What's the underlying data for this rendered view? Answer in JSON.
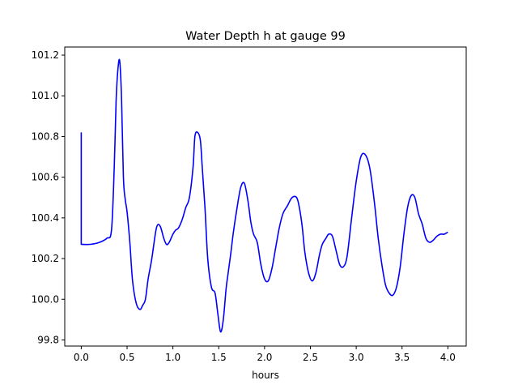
{
  "chart_data": {
    "type": "line",
    "title": "Water Depth h at gauge 99",
    "xlabel": "hours",
    "ylabel": "",
    "xlim": [
      -0.18,
      4.2
    ],
    "ylim": [
      99.77,
      101.24
    ],
    "xticks": [
      0.0,
      0.5,
      1.0,
      1.5,
      2.0,
      2.5,
      3.0,
      3.5,
      4.0
    ],
    "xtick_labels": [
      "0.0",
      "0.5",
      "1.0",
      "1.5",
      "2.0",
      "2.5",
      "3.0",
      "3.5",
      "4.0"
    ],
    "yticks": [
      99.8,
      100.0,
      100.2,
      100.4,
      100.6,
      100.8,
      101.0,
      101.2
    ],
    "ytick_labels": [
      "99.8",
      "100.0",
      "100.2",
      "100.4",
      "100.6",
      "100.8",
      "101.0",
      "101.2"
    ],
    "grid": false,
    "series": [
      {
        "color": "#0000ff",
        "x": [
          0.0,
          0.0,
          0.1,
          0.2,
          0.28,
          0.33,
          0.36,
          0.38,
          0.4,
          0.42,
          0.44,
          0.46,
          0.48,
          0.5,
          0.53,
          0.56,
          0.6,
          0.64,
          0.67,
          0.7,
          0.73,
          0.77,
          0.82,
          0.86,
          0.9,
          0.93,
          0.96,
          1.0,
          1.03,
          1.06,
          1.1,
          1.14,
          1.18,
          1.22,
          1.24,
          1.27,
          1.3,
          1.32,
          1.35,
          1.38,
          1.42,
          1.46,
          1.49,
          1.52,
          1.55,
          1.58,
          1.6,
          1.63,
          1.66,
          1.7,
          1.74,
          1.78,
          1.82,
          1.85,
          1.88,
          1.92,
          1.96,
          2.0,
          2.04,
          2.08,
          2.12,
          2.16,
          2.2,
          2.25,
          2.3,
          2.35,
          2.38,
          2.41,
          2.44,
          2.48,
          2.52,
          2.56,
          2.6,
          2.63,
          2.67,
          2.7,
          2.74,
          2.78,
          2.82,
          2.86,
          2.9,
          2.95,
          3.0,
          3.05,
          3.1,
          3.15,
          3.2,
          3.24,
          3.28,
          3.32,
          3.36,
          3.4,
          3.44,
          3.48,
          3.52,
          3.56,
          3.6,
          3.64,
          3.68,
          3.72,
          3.76,
          3.8,
          3.84,
          3.88,
          3.92,
          3.96,
          4.0
        ],
        "y": [
          100.82,
          100.27,
          100.27,
          100.28,
          100.3,
          100.34,
          100.65,
          100.97,
          101.13,
          101.17,
          100.98,
          100.6,
          100.49,
          100.43,
          100.28,
          100.09,
          99.98,
          99.95,
          99.97,
          100.0,
          100.1,
          100.2,
          100.35,
          100.36,
          100.3,
          100.27,
          100.28,
          100.32,
          100.34,
          100.35,
          100.39,
          100.45,
          100.5,
          100.65,
          100.8,
          100.82,
          100.78,
          100.65,
          100.45,
          100.2,
          100.06,
          100.03,
          99.93,
          99.84,
          99.9,
          100.05,
          100.12,
          100.22,
          100.33,
          100.45,
          100.55,
          100.57,
          100.48,
          100.38,
          100.32,
          100.28,
          100.17,
          100.1,
          100.09,
          100.15,
          100.25,
          100.35,
          100.42,
          100.46,
          100.5,
          100.5,
          100.45,
          100.36,
          100.23,
          100.13,
          100.09,
          100.13,
          100.22,
          100.27,
          100.3,
          100.32,
          100.31,
          100.24,
          100.17,
          100.16,
          100.21,
          100.4,
          100.58,
          100.7,
          100.71,
          100.64,
          100.47,
          100.3,
          100.17,
          100.07,
          100.03,
          100.02,
          100.06,
          100.16,
          100.32,
          100.45,
          100.51,
          100.5,
          100.42,
          100.37,
          100.3,
          100.28,
          100.29,
          100.31,
          100.32,
          100.32,
          100.33
        ]
      }
    ]
  }
}
